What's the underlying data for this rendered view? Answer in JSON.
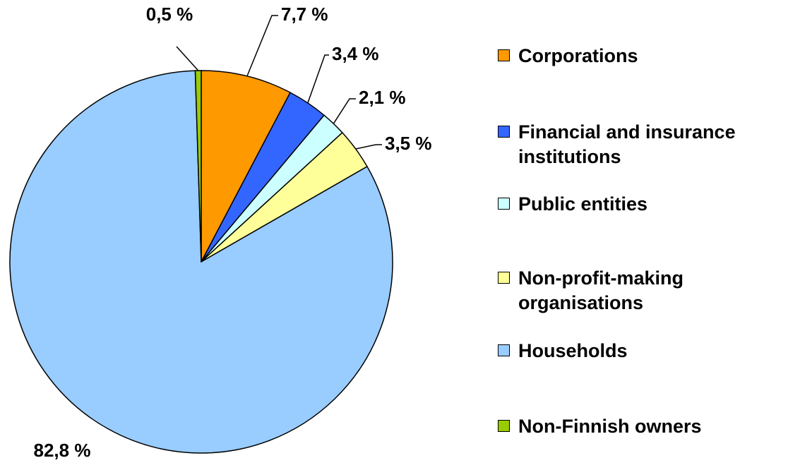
{
  "chart_data": {
    "type": "pie",
    "categories": [
      "Corporations",
      "Financial and insurance institutions",
      "Public entities",
      "Non-profit-making organisations",
      "Households",
      "Non-Finnish owners"
    ],
    "values": [
      7.7,
      3.4,
      2.1,
      3.5,
      82.8,
      0.5
    ],
    "value_labels": [
      "7,7 %",
      "3,4 %",
      "2,1 %",
      "3,5 %",
      "82,8 %",
      "0,5 %"
    ],
    "colors": [
      "#ff9900",
      "#3366ff",
      "#ccffff",
      "#ffff99",
      "#99ccff",
      "#99cc00"
    ],
    "legend": "right"
  }
}
